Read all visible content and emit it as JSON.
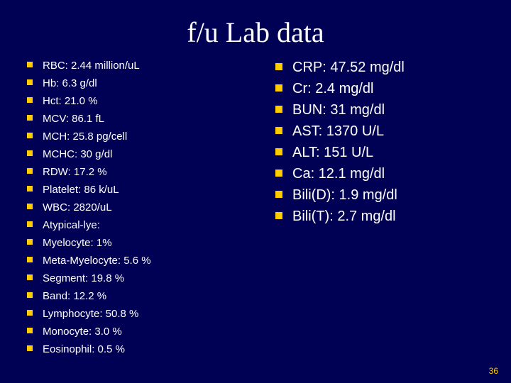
{
  "title": "f/u Lab data",
  "page_number": "36",
  "colors": {
    "background": "#000055",
    "bullet": "#ffcc00",
    "title_text": "#ffffff",
    "body_text": "#ffffff",
    "pagenum": "#ffcc00"
  },
  "left_items": [
    "RBC: 2.44 million/uL",
    "Hb: 6.3 g/dl",
    "Hct: 21.0 %",
    "MCV: 86.1 fL",
    "MCH: 25.8 pg/cell",
    "MCHC: 30 g/dl",
    "RDW: 17.2 %",
    "Platelet: 86 k/uL",
    "WBC: 2820/uL",
    "Atypical-lye:",
    "Myelocyte: 1%",
    "Meta-Myelocyte: 5.6 %",
    "Segment: 19.8 %",
    "Band: 12.2 %",
    "Lymphocyte: 50.8 %",
    "Monocyte: 3.0 %",
    "Eosinophil: 0.5 %"
  ],
  "right_items": [
    "CRP: 47.52 mg/dl",
    "Cr: 2.4 mg/dl",
    "BUN: 31 mg/dl",
    "AST: 1370 U/L",
    "ALT: 151 U/L",
    "Ca: 12.1 mg/dl",
    "Bili(D): 1.9 mg/dl",
    "Bili(T): 2.7 mg/dl"
  ]
}
